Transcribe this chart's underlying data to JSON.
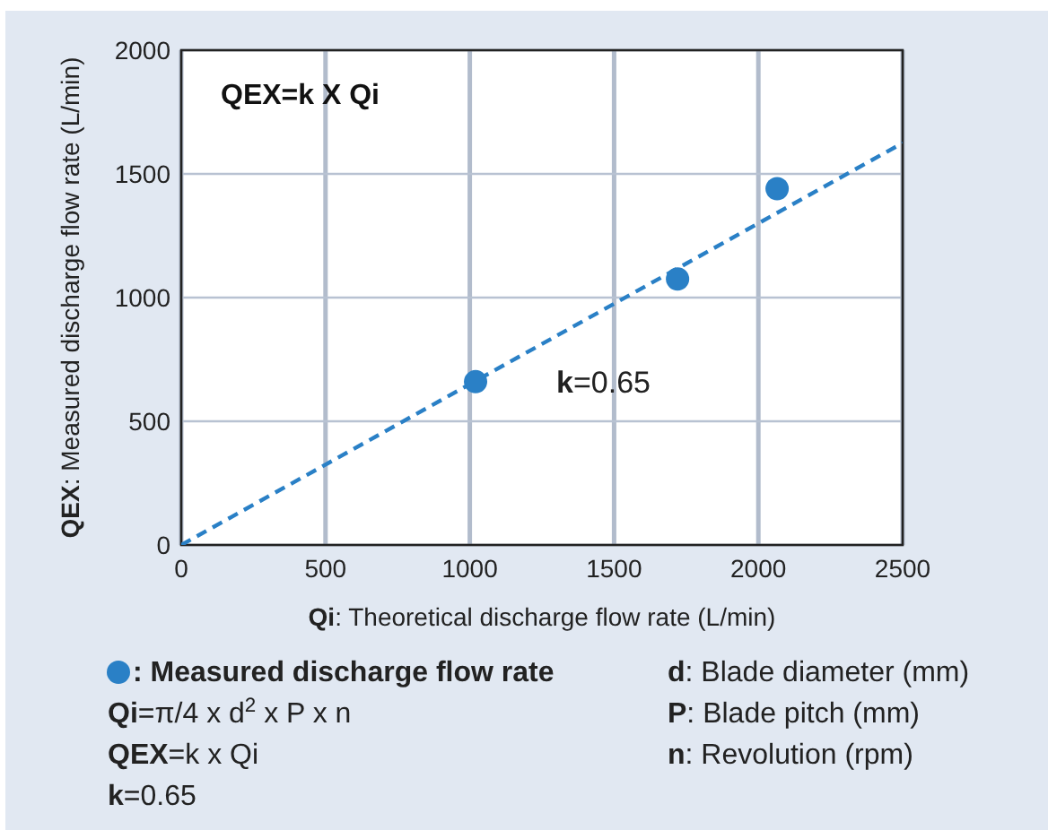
{
  "chart_data": {
    "type": "scatter",
    "xlabel": "Qi: Theoretical discharge flow rate (L/min)",
    "ylabel": "QEX: Measured discharge flow rate (L/min)",
    "xlim": [
      0,
      2500
    ],
    "xticks": [
      0,
      500,
      1000,
      1500,
      2000,
      2500
    ],
    "ylim": [
      0,
      2000
    ],
    "yticks": [
      0,
      500,
      1000,
      1500,
      2000
    ],
    "grid": true,
    "legend": "bottom",
    "marker": "circle",
    "series": [
      {
        "name": ": Measured discharge flow rate",
        "color": "#2a80c6",
        "x": [
          1020,
          1720,
          2065
        ],
        "values": [
          660,
          1075,
          1440
        ]
      },
      {
        "type": "line",
        "color": "#2a80c6",
        "line_style": "dashed",
        "marker": "none",
        "x": [
          0,
          2500
        ],
        "values": [
          0,
          1625
        ]
      }
    ],
    "annotations": [
      "QEX=k X Qi",
      "k=0.65",
      "Qi=π/4 x d$^{2}$ x P x n",
      "QEX=k x Qi",
      "k=0.65",
      "d: Blade diameter (mm)",
      "P: Blade pitch (mm)",
      "n: Revolution (rpm)"
    ]
  }
}
